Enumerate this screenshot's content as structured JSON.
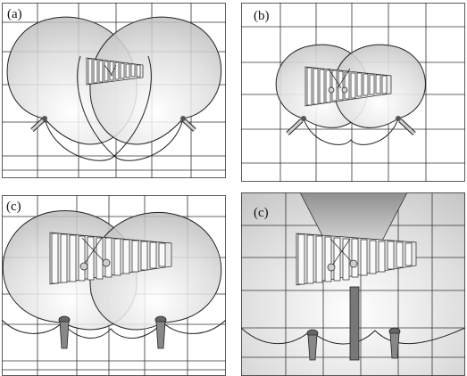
{
  "panels": [
    {
      "label": "(a)"
    },
    {
      "label": "(b)"
    },
    {
      "label": "(c)"
    },
    {
      "label": "(c)"
    }
  ]
}
